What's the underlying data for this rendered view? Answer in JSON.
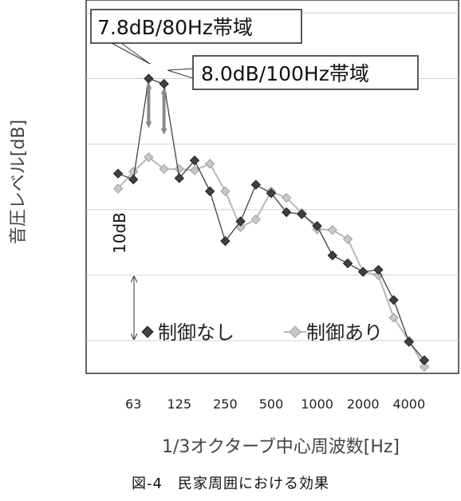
{
  "chart_data": {
    "type": "line",
    "xlabel": "1/3オクターブ中心周波数[Hz]",
    "ylabel": "音圧レベル[dB]",
    "x_ticks": [
      "63",
      "125",
      "250",
      "500",
      "1000",
      "2000",
      "4000"
    ],
    "x": [
      "50",
      "63",
      "80",
      "100",
      "125",
      "160",
      "200",
      "250",
      "315",
      "400",
      "500",
      "630",
      "800",
      "1000",
      "1250",
      "1600",
      "2000",
      "2500",
      "3150",
      "4000",
      "5000"
    ],
    "ylim": [
      35,
      92
    ],
    "grid": true,
    "series": [
      {
        "name": "制御なし",
        "color": "#404040",
        "marker": "diamond",
        "values": [
          65.5,
          64.6,
          80.0,
          79.2,
          64.8,
          67.5,
          62.8,
          55.2,
          58.2,
          63.8,
          62.5,
          59.6,
          59.3,
          57.5,
          53.0,
          51.8,
          50.5,
          50.8,
          46.2,
          39.8,
          37.0
        ]
      },
      {
        "name": "制御あり",
        "color": "#b8b8b8",
        "marker": "diamond",
        "values": [
          63.2,
          65.8,
          68.0,
          66.2,
          66.2,
          66.0,
          67.0,
          62.8,
          57.3,
          58.5,
          62.8,
          61.8,
          59.5,
          57.0,
          56.9,
          55.5,
          50.5,
          50.0,
          43.5,
          40.0,
          36.0
        ]
      }
    ],
    "annotations": [
      {
        "text": "7.8dB/80Hz帯域",
        "x": "80",
        "from": 80.0,
        "to": 72.2
      },
      {
        "text": "8.0dB/100Hz帯域",
        "x": "100",
        "from": 79.2,
        "to": 71.2
      }
    ],
    "scale_bar": {
      "label": "10dB",
      "from": 40,
      "to": 50
    }
  },
  "caption": "図-4　民家周囲における効果"
}
